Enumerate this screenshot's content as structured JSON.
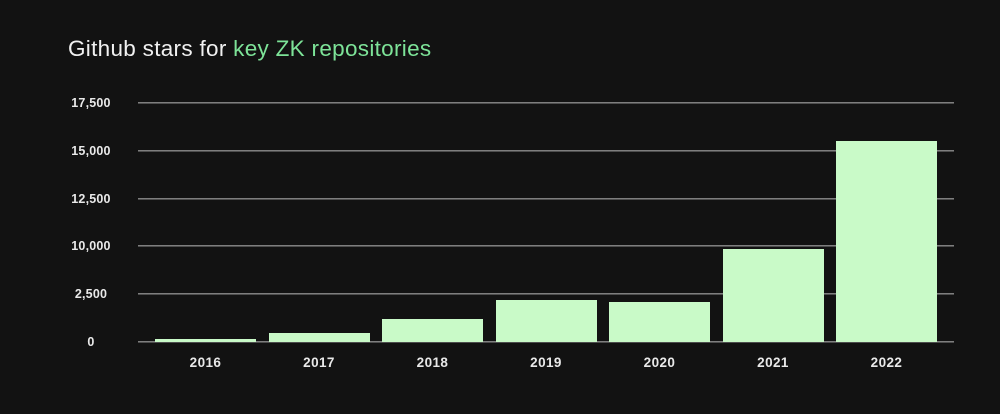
{
  "page": {
    "background_color": "#121212"
  },
  "title": {
    "plain": "Github stars for ",
    "highlight": "key ZK repositories",
    "plain_color": "#f1f1f1",
    "highlight_color": "#7de398"
  },
  "chart_data": {
    "type": "bar",
    "title": "Github stars for key ZK repositories",
    "categories": [
      "2016",
      "2017",
      "2018",
      "2019",
      "2020",
      "2021",
      "2022"
    ],
    "values": [
      180,
      500,
      1200,
      2170,
      2120,
      9500,
      15400
    ],
    "xlabel": "",
    "ylabel": "",
    "y_tick_labels_top_to_bottom": [
      "17,500",
      "15,000",
      "12,500",
      "10,000",
      "2,500",
      "0"
    ],
    "ylim_as_labeled": [
      0,
      17500
    ],
    "bar_height_frac_of_plot": [
      0.014,
      0.039,
      0.096,
      0.174,
      0.169,
      0.389,
      0.843
    ],
    "bar_color": "#c9fac8",
    "gridlines": "horizontal",
    "legend_position": "none"
  }
}
